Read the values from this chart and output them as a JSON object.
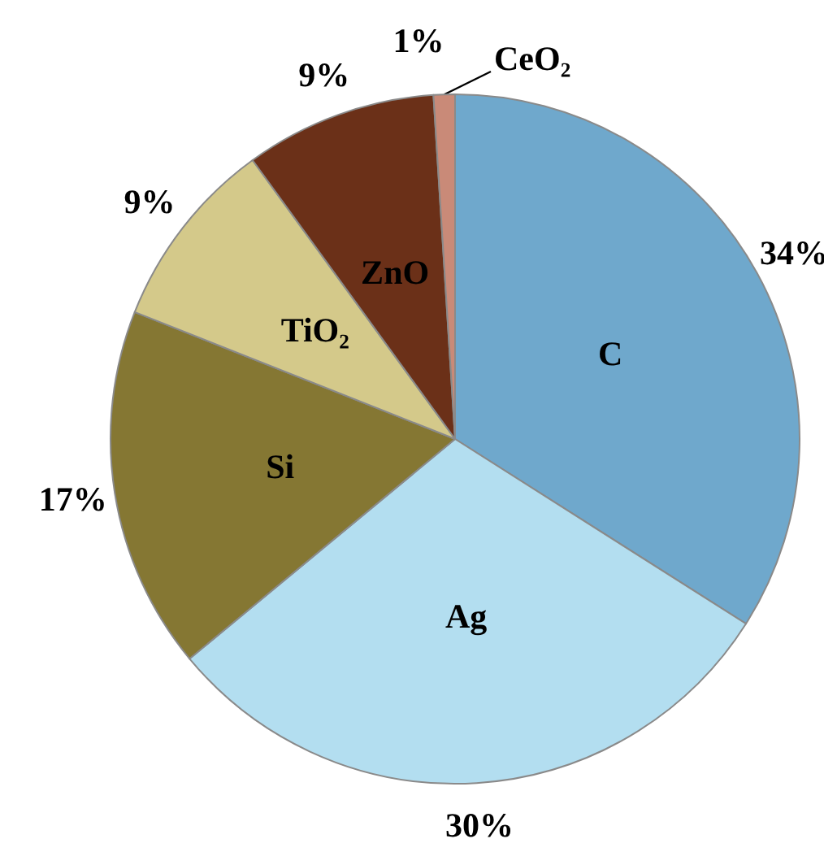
{
  "chart_data": {
    "type": "pie",
    "categories": [
      "C",
      "Ag",
      "Si",
      "TiO₂",
      "ZnO",
      "CeO₂"
    ],
    "values": [
      34,
      30,
      17,
      9,
      9,
      1
    ],
    "value_labels": [
      "34%",
      "30%",
      "17%",
      "9%",
      "9%",
      "1%"
    ],
    "colors": [
      "#6fa8cc",
      "#b3def0",
      "#857733",
      "#d4c98a",
      "#6b3018",
      "#c98a78"
    ],
    "legend": false
  }
}
